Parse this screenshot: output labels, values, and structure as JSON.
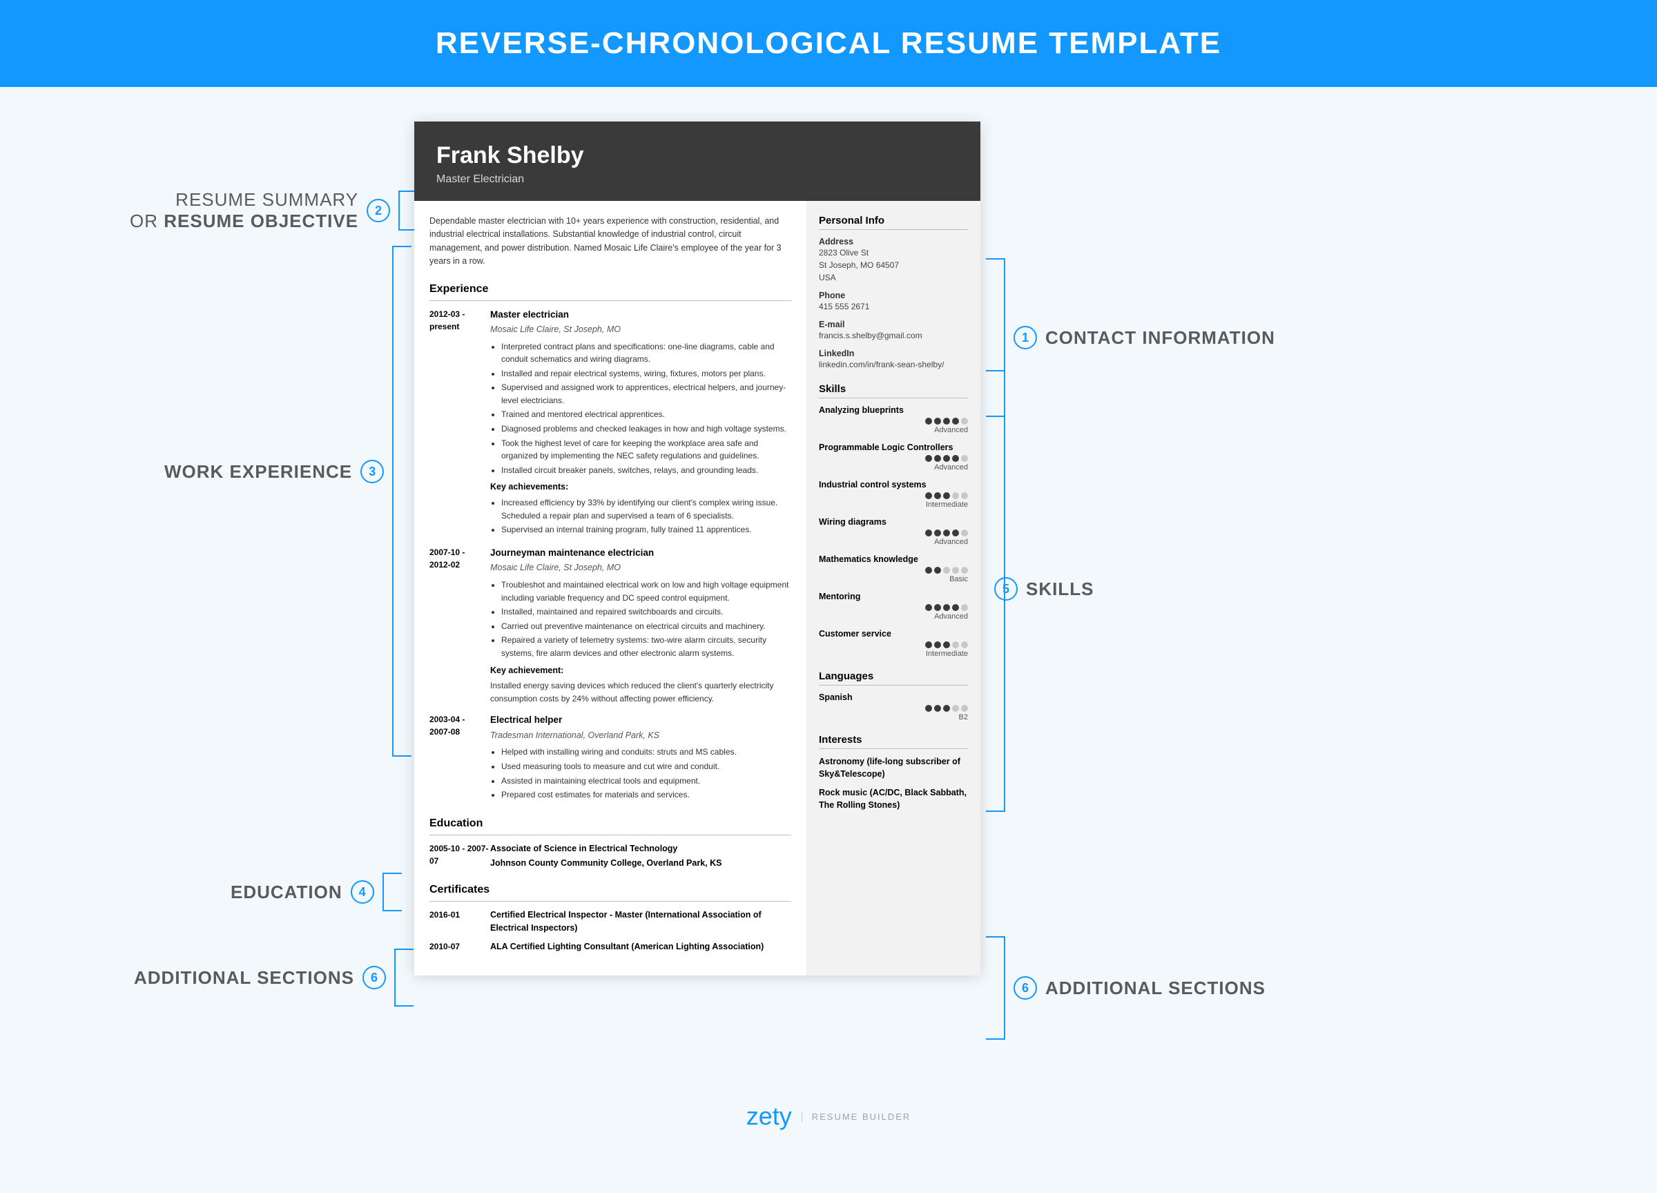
{
  "banner_title": "REVERSE-CHRONOLOGICAL RESUME TEMPLATE",
  "callouts": {
    "summary": {
      "num": "2",
      "label_thin": "RESUME SUMMARY",
      "label_or": "OR",
      "label_bold": "RESUME OBJECTIVE"
    },
    "experience": {
      "num": "3",
      "label": "WORK EXPERIENCE"
    },
    "education": {
      "num": "4",
      "label": "EDUCATION"
    },
    "additional_l": {
      "num": "6",
      "label": "ADDITIONAL SECTIONS"
    },
    "contact": {
      "num": "1",
      "label": "CONTACT INFORMATION"
    },
    "skills": {
      "num": "5",
      "label": "SKILLS"
    },
    "additional_r": {
      "num": "6",
      "label": "ADDITIONAL SECTIONS"
    }
  },
  "resume": {
    "name": "Frank Shelby",
    "title": "Master Electrician",
    "summary": "Dependable master electrician with 10+ years experience with construction, residential, and industrial electrical installations. Substantial knowledge of industrial control, circuit management, and power distribution. Named Mosaic Life Claire's employee of the year for 3 years in a row.",
    "experience_h": "Experience",
    "jobs": [
      {
        "date": "2012-03 - present",
        "title": "Master electrician",
        "company": "Mosaic Life Claire, St Joseph, MO",
        "bullets": [
          "Interpreted contract plans and specifications: one-line diagrams, cable and conduit schematics and wiring diagrams.",
          "Installed and repair electrical systems, wiring, fixtures, motors per plans.",
          "Supervised and assigned work to apprentices, electrical helpers, and journey-level electricians.",
          "Trained and mentored electrical apprentices.",
          "Diagnosed problems and checked leakages in how and high voltage systems.",
          "Took the highest level of care for keeping the workplace area safe and organized by implementing the NEC safety regulations and guidelines.",
          "Installed circuit breaker panels, switches, relays, and grounding leads."
        ],
        "ach_h": "Key achievements:",
        "ach": [
          "Increased efficiency by 33% by identifying our client's complex wiring issue. Scheduled a repair plan and supervised a team of 6 specialists.",
          "Supervised an internal training program, fully trained 11 apprentices."
        ]
      },
      {
        "date": "2007-10 - 2012-02",
        "title": "Journeyman maintenance electrician",
        "company": "Mosaic Life Claire, St Joseph, MO",
        "bullets": [
          "Troubleshot and maintained electrical work on low and high voltage equipment including variable frequency and DC speed control equipment.",
          "Installed, maintained and repaired switchboards and circuits.",
          "Carried out preventive maintenance on electrical circuits and machinery.",
          "Repaired a variety of telemetry systems: two-wire alarm circuits, security systems, fire alarm devices and other electronic alarm systems."
        ],
        "ach_h": "Key achievement:",
        "ach_text": "Installed energy saving devices which reduced the client's quarterly electricity consumption costs by 24% without affecting power efficiency."
      },
      {
        "date": "2003-04 - 2007-08",
        "title": "Electrical helper",
        "company": "Tradesman International, Overland Park, KS",
        "bullets": [
          "Helped with installing wiring and conduits: struts and MS cables.",
          "Used measuring tools to measure and cut wire and conduit.",
          "Assisted in maintaining electrical tools and equipment.",
          "Prepared cost estimates for materials and services."
        ]
      }
    ],
    "education_h": "Education",
    "education": {
      "date": "2005-10 - 2007-07",
      "degree": "Associate of Science in Electrical Technology",
      "school": "Johnson County Community College, Overland Park, KS"
    },
    "cert_h": "Certificates",
    "certs": [
      {
        "date": "2016-01",
        "text": "Certified Electrical Inspector - Master (International Association of Electrical Inspectors)"
      },
      {
        "date": "2010-07",
        "text": "ALA Certified Lighting Consultant (American Lighting Association)"
      }
    ],
    "personal_h": "Personal Info",
    "personal": {
      "address_l": "Address",
      "address": "2823 Olive St\nSt Joseph, MO 64507\nUSA",
      "phone_l": "Phone",
      "phone": "415 555 2671",
      "email_l": "E-mail",
      "email": "francis.s.shelby@gmail.com",
      "linkedin_l": "LinkedIn",
      "linkedin": "linkedin.com/in/frank-sean-shelby/"
    },
    "skills_h": "Skills",
    "skills": [
      {
        "name": "Analyzing blueprints",
        "dots": 4,
        "level": "Advanced"
      },
      {
        "name": "Programmable Logic Controllers",
        "dots": 4,
        "level": "Advanced"
      },
      {
        "name": "Industrial control systems",
        "dots": 3,
        "level": "Intermediate"
      },
      {
        "name": "Wiring diagrams",
        "dots": 4,
        "level": "Advanced"
      },
      {
        "name": "Mathematics knowledge",
        "dots": 2,
        "level": "Basic"
      },
      {
        "name": "Mentoring",
        "dots": 4,
        "level": "Advanced"
      },
      {
        "name": "Customer service",
        "dots": 3,
        "level": "Intermediate"
      }
    ],
    "lang_h": "Languages",
    "languages": [
      {
        "name": "Spanish",
        "dots": 3,
        "level": "B2"
      }
    ],
    "interests_h": "Interests",
    "interests": [
      "Astronomy (life-long subscriber of Sky&Telescope)",
      "Rock music (AC/DC, Black Sabbath, The Rolling Stones)"
    ]
  },
  "footer": {
    "logo": "zety",
    "sub": "RESUME BUILDER"
  },
  "colors": {
    "accent": "#1398ff",
    "header_bg": "#3a3a3a",
    "page_bg": "#f2f8fc"
  }
}
